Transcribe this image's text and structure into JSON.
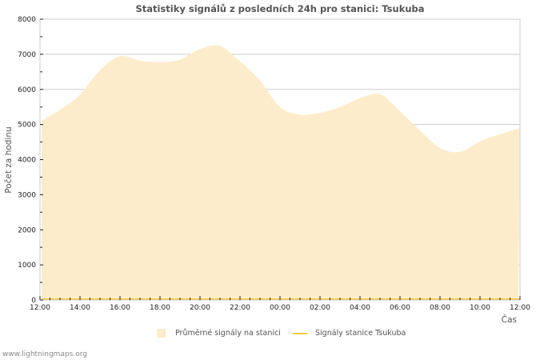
{
  "chart_data": {
    "type": "area",
    "title": "Statistiky signálů z posledních 24h pro stanici: Tsukuba",
    "xlabel": "Čas",
    "ylabel": "Počet za hodinu",
    "ylim": [
      0,
      8000
    ],
    "yticks": [
      0,
      1000,
      2000,
      3000,
      4000,
      5000,
      6000,
      7000,
      8000
    ],
    "xtick_labels": [
      "12:00",
      "14:00",
      "16:00",
      "18:00",
      "20:00",
      "22:00",
      "00:00",
      "02:00",
      "04:00",
      "06:00",
      "08:00",
      "10:00",
      "12:00"
    ],
    "grid": true,
    "legend_position": "bottom",
    "x": [
      "12:00",
      "13:00",
      "14:00",
      "15:00",
      "16:00",
      "17:00",
      "18:00",
      "19:00",
      "20:00",
      "21:00",
      "22:00",
      "23:00",
      "00:00",
      "01:00",
      "02:00",
      "03:00",
      "04:00",
      "05:00",
      "06:00",
      "07:00",
      "08:00",
      "09:00",
      "10:00",
      "11:00",
      "12:00"
    ],
    "series": [
      {
        "name": "Průměrné signály na stanici",
        "type": "area",
        "color": "#fdeccb",
        "values": [
          5100,
          5420,
          5850,
          6550,
          6950,
          6820,
          6780,
          6850,
          7150,
          7240,
          6800,
          6250,
          5500,
          5280,
          5330,
          5500,
          5750,
          5860,
          5380,
          4830,
          4330,
          4220,
          4520,
          4720,
          4900
        ]
      },
      {
        "name": "Signály stanice Tsukuba",
        "type": "line",
        "color": "#f5c842",
        "values": [
          0,
          0,
          0,
          0,
          0,
          0,
          0,
          0,
          0,
          0,
          0,
          0,
          0,
          0,
          0,
          0,
          0,
          0,
          0,
          0,
          0,
          0,
          0,
          0,
          0
        ]
      }
    ]
  },
  "footer": {
    "text": "www.lightningmaps.org"
  }
}
